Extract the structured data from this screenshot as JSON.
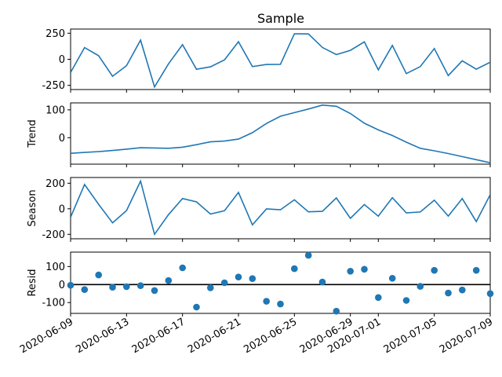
{
  "chart_data": {
    "type": "line",
    "title": "Sample",
    "shared_x": {
      "ticks": [
        "2020-06-09",
        "2020-06-13",
        "2020-06-17",
        "2020-06-21",
        "2020-06-25",
        "2020-06-29",
        "2020-07-01",
        "2020-07-05",
        "2020-07-09"
      ],
      "start": "2020-06-09",
      "end": "2020-07-09"
    },
    "panels": [
      {
        "ylabel": "",
        "kind": "line",
        "ylim": [
          -290,
          290
        ],
        "yticks": [
          -250,
          0,
          250
        ],
        "values": [
          -126,
          112,
          35,
          -163,
          -61,
          184,
          -265,
          -44,
          140,
          -96,
          -72,
          -5,
          169,
          -70,
          -50,
          -49,
          245,
          243,
          114,
          45,
          86,
          167,
          -101,
          133,
          -137,
          -70,
          103,
          -156,
          -14,
          -95,
          -28
        ]
      },
      {
        "ylabel": "Trend",
        "kind": "line",
        "ylim": [
          -95,
          125
        ],
        "yticks": [
          0,
          100
        ],
        "values": [
          -56,
          -53,
          -50,
          -46,
          -41,
          -36,
          -37,
          -38,
          -34,
          -25,
          -15,
          -12,
          -5,
          18,
          51,
          77,
          90,
          103,
          117,
          113,
          87,
          52,
          28,
          8,
          -16,
          -38,
          -47,
          -57,
          -68,
          -79,
          -90
        ]
      },
      {
        "ylabel": "Season",
        "kind": "line",
        "ylim": [
          -235,
          245
        ],
        "yticks": [
          -200,
          0,
          200
        ],
        "values": [
          -66,
          190,
          35,
          -110,
          -14,
          217,
          -200,
          -46,
          80,
          54,
          -41,
          -15,
          128,
          -126,
          -1,
          -8,
          70,
          -24,
          -20,
          85,
          -75,
          33,
          -58,
          87,
          -32,
          -25,
          67,
          -57,
          80,
          -100,
          110
        ]
      },
      {
        "ylabel": "Resid",
        "kind": "scatter",
        "baseline": 0,
        "ylim": [
          -160,
          180
        ],
        "yticks": [
          -100,
          0,
          100
        ],
        "values": [
          -4,
          -28,
          53,
          -15,
          -12,
          -6,
          -33,
          22,
          93,
          -125,
          -18,
          10,
          42,
          33,
          -93,
          -108,
          88,
          162,
          14,
          -148,
          74,
          85,
          -72,
          35,
          -88,
          -10,
          79,
          -47,
          -30,
          79,
          -50
        ]
      }
    ]
  }
}
